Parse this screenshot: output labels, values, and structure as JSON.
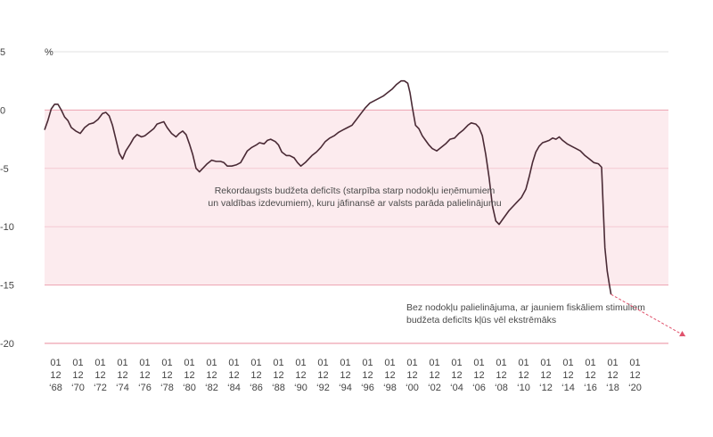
{
  "chart_data": {
    "type": "area",
    "ylabel": "%",
    "ylim": [
      -20,
      5
    ],
    "y_ticks": [
      "5",
      "0",
      "-5",
      "-10",
      "-15",
      "-20"
    ],
    "y_tick_values": [
      5,
      0,
      -5,
      -10,
      -15,
      -20
    ],
    "xlim": [
      1967.0,
      2023.0
    ],
    "x_ticks": [
      {
        "year": 1968,
        "l1": "01",
        "l2": "12",
        "l3": "‘68"
      },
      {
        "year": 1970,
        "l1": "01",
        "l2": "12",
        "l3": "‘70"
      },
      {
        "year": 1972,
        "l1": "01",
        "l2": "12",
        "l3": "‘72"
      },
      {
        "year": 1974,
        "l1": "01",
        "l2": "12",
        "l3": "‘74"
      },
      {
        "year": 1976,
        "l1": "01",
        "l2": "12",
        "l3": "‘76"
      },
      {
        "year": 1978,
        "l1": "01",
        "l2": "12",
        "l3": "‘78"
      },
      {
        "year": 1980,
        "l1": "01",
        "l2": "12",
        "l3": "‘80"
      },
      {
        "year": 1982,
        "l1": "01",
        "l2": "12",
        "l3": "‘82"
      },
      {
        "year": 1984,
        "l1": "01",
        "l2": "12",
        "l3": "‘84"
      },
      {
        "year": 1986,
        "l1": "01",
        "l2": "12",
        "l3": "‘86"
      },
      {
        "year": 1988,
        "l1": "01",
        "l2": "12",
        "l3": "‘88"
      },
      {
        "year": 1990,
        "l1": "01",
        "l2": "12",
        "l3": "‘90"
      },
      {
        "year": 1992,
        "l1": "01",
        "l2": "12",
        "l3": "‘92"
      },
      {
        "year": 1994,
        "l1": "01",
        "l2": "12",
        "l3": "‘94"
      },
      {
        "year": 1996,
        "l1": "01",
        "l2": "12",
        "l3": "‘96"
      },
      {
        "year": 1998,
        "l1": "01",
        "l2": "12",
        "l3": "‘98"
      },
      {
        "year": 2000,
        "l1": "01",
        "l2": "12",
        "l3": "‘00"
      },
      {
        "year": 2002,
        "l1": "01",
        "l2": "12",
        "l3": "‘02"
      },
      {
        "year": 2004,
        "l1": "01",
        "l2": "12",
        "l3": "‘04"
      },
      {
        "year": 2006,
        "l1": "01",
        "l2": "12",
        "l3": "‘06"
      },
      {
        "year": 2008,
        "l1": "01",
        "l2": "12",
        "l3": "‘08"
      },
      {
        "year": 2010,
        "l1": "01",
        "l2": "12",
        "l3": "‘10"
      },
      {
        "year": 2012,
        "l1": "01",
        "l2": "12",
        "l3": "‘12"
      },
      {
        "year": 2014,
        "l1": "01",
        "l2": "12",
        "l3": "‘14"
      },
      {
        "year": 2016,
        "l1": "01",
        "l2": "12",
        "l3": "‘16"
      },
      {
        "year": 2018,
        "l1": "01",
        "l2": "12",
        "l3": "‘18"
      },
      {
        "year": 2020,
        "l1": "01",
        "l2": "12",
        "l3": "‘20"
      }
    ],
    "shaded_range": [
      -15,
      0
    ],
    "series": [
      {
        "values": [
          [
            1967.0,
            -1.7
          ],
          [
            1967.3,
            -0.9
          ],
          [
            1967.6,
            0.1
          ],
          [
            1967.9,
            0.5
          ],
          [
            1968.2,
            0.5
          ],
          [
            1968.5,
            0.0
          ],
          [
            1968.8,
            -0.6
          ],
          [
            1969.1,
            -0.9
          ],
          [
            1969.4,
            -1.5
          ],
          [
            1969.8,
            -1.8
          ],
          [
            1970.2,
            -2.0
          ],
          [
            1970.6,
            -1.5
          ],
          [
            1971.0,
            -1.2
          ],
          [
            1971.4,
            -1.1
          ],
          [
            1971.8,
            -0.8
          ],
          [
            1972.2,
            -0.3
          ],
          [
            1972.5,
            -0.2
          ],
          [
            1972.8,
            -0.5
          ],
          [
            1973.1,
            -1.3
          ],
          [
            1973.4,
            -2.5
          ],
          [
            1973.7,
            -3.7
          ],
          [
            1974.0,
            -4.2
          ],
          [
            1974.3,
            -3.5
          ],
          [
            1974.7,
            -2.9
          ],
          [
            1975.0,
            -2.4
          ],
          [
            1975.3,
            -2.1
          ],
          [
            1975.7,
            -2.3
          ],
          [
            1976.0,
            -2.2
          ],
          [
            1976.4,
            -1.9
          ],
          [
            1976.8,
            -1.6
          ],
          [
            1977.1,
            -1.2
          ],
          [
            1977.4,
            -1.1
          ],
          [
            1977.7,
            -1.0
          ],
          [
            1978.0,
            -1.5
          ],
          [
            1978.4,
            -2.0
          ],
          [
            1978.8,
            -2.3
          ],
          [
            1979.1,
            -2.0
          ],
          [
            1979.4,
            -1.8
          ],
          [
            1979.7,
            -2.1
          ],
          [
            1980.0,
            -2.9
          ],
          [
            1980.3,
            -3.8
          ],
          [
            1980.6,
            -5.0
          ],
          [
            1980.9,
            -5.3
          ],
          [
            1981.2,
            -5.0
          ],
          [
            1981.6,
            -4.6
          ],
          [
            1982.0,
            -4.3
          ],
          [
            1982.4,
            -4.4
          ],
          [
            1982.8,
            -4.4
          ],
          [
            1983.1,
            -4.5
          ],
          [
            1983.4,
            -4.8
          ],
          [
            1983.8,
            -4.8
          ],
          [
            1984.2,
            -4.7
          ],
          [
            1984.6,
            -4.5
          ],
          [
            1984.9,
            -4.0
          ],
          [
            1985.2,
            -3.5
          ],
          [
            1985.6,
            -3.2
          ],
          [
            1986.0,
            -3.0
          ],
          [
            1986.3,
            -2.8
          ],
          [
            1986.7,
            -2.9
          ],
          [
            1987.0,
            -2.6
          ],
          [
            1987.3,
            -2.5
          ],
          [
            1987.7,
            -2.7
          ],
          [
            1988.0,
            -3.0
          ],
          [
            1988.3,
            -3.6
          ],
          [
            1988.7,
            -3.9
          ],
          [
            1989.0,
            -3.9
          ],
          [
            1989.4,
            -4.1
          ],
          [
            1989.7,
            -4.5
          ],
          [
            1990.0,
            -4.8
          ],
          [
            1990.4,
            -4.5
          ],
          [
            1990.7,
            -4.2
          ],
          [
            1991.0,
            -3.9
          ],
          [
            1991.4,
            -3.6
          ],
          [
            1991.8,
            -3.2
          ],
          [
            1992.2,
            -2.7
          ],
          [
            1992.6,
            -2.4
          ],
          [
            1993.0,
            -2.2
          ],
          [
            1993.4,
            -1.9
          ],
          [
            1993.8,
            -1.7
          ],
          [
            1994.2,
            -1.5
          ],
          [
            1994.6,
            -1.3
          ],
          [
            1995.0,
            -0.8
          ],
          [
            1995.4,
            -0.3
          ],
          [
            1995.8,
            0.2
          ],
          [
            1996.2,
            0.6
          ],
          [
            1996.6,
            0.8
          ],
          [
            1997.0,
            1.0
          ],
          [
            1997.4,
            1.2
          ],
          [
            1997.8,
            1.5
          ],
          [
            1998.2,
            1.8
          ],
          [
            1998.6,
            2.2
          ],
          [
            1999.0,
            2.5
          ],
          [
            1999.3,
            2.5
          ],
          [
            1999.6,
            2.3
          ],
          [
            1999.8,
            1.5
          ],
          [
            2000.0,
            0.3
          ],
          [
            2000.3,
            -1.3
          ],
          [
            2000.6,
            -1.6
          ],
          [
            2000.9,
            -2.2
          ],
          [
            2001.2,
            -2.6
          ],
          [
            2001.5,
            -3.0
          ],
          [
            2001.8,
            -3.3
          ],
          [
            2002.2,
            -3.5
          ],
          [
            2002.6,
            -3.2
          ],
          [
            2003.0,
            -2.9
          ],
          [
            2003.4,
            -2.5
          ],
          [
            2003.8,
            -2.4
          ],
          [
            2004.2,
            -2.0
          ],
          [
            2004.6,
            -1.7
          ],
          [
            2005.0,
            -1.3
          ],
          [
            2005.3,
            -1.1
          ],
          [
            2005.7,
            -1.2
          ],
          [
            2006.0,
            -1.5
          ],
          [
            2006.3,
            -2.2
          ],
          [
            2006.6,
            -3.8
          ],
          [
            2006.9,
            -5.8
          ],
          [
            2007.2,
            -8.2
          ],
          [
            2007.5,
            -9.5
          ],
          [
            2007.8,
            -9.8
          ],
          [
            2008.1,
            -9.4
          ],
          [
            2008.4,
            -9.0
          ],
          [
            2008.7,
            -8.6
          ],
          [
            2009.0,
            -8.3
          ],
          [
            2009.4,
            -7.9
          ],
          [
            2009.8,
            -7.5
          ],
          [
            2010.2,
            -6.8
          ],
          [
            2010.5,
            -5.7
          ],
          [
            2010.8,
            -4.5
          ],
          [
            2011.1,
            -3.6
          ],
          [
            2011.4,
            -3.1
          ],
          [
            2011.7,
            -2.8
          ],
          [
            2012.0,
            -2.7
          ],
          [
            2012.3,
            -2.6
          ],
          [
            2012.6,
            -2.4
          ],
          [
            2012.9,
            -2.5
          ],
          [
            2013.2,
            -2.3
          ],
          [
            2013.5,
            -2.6
          ],
          [
            2013.9,
            -2.9
          ],
          [
            2014.3,
            -3.1
          ],
          [
            2014.7,
            -3.3
          ],
          [
            2015.1,
            -3.5
          ],
          [
            2015.5,
            -3.9
          ],
          [
            2015.9,
            -4.2
          ],
          [
            2016.3,
            -4.5
          ],
          [
            2016.7,
            -4.6
          ],
          [
            2017.0,
            -4.9
          ],
          [
            2017.15,
            -8.5
          ],
          [
            2017.3,
            -11.8
          ],
          [
            2017.5,
            -13.8
          ],
          [
            2017.7,
            -15.0
          ],
          [
            2017.85,
            -15.8
          ]
        ]
      }
    ],
    "annotations": [
      {
        "lines": [
          "Rekordaugsts budžeta deficīts (starpība starp nodokļu ieņēmumiem",
          "un valdības izdevumiem), kuru jāfinansē ar valsts parāda palielinājumu"
        ]
      },
      {
        "lines": [
          "Bez nodokļu palielinājuma, ar jauniem fiskāliem stimuliem",
          "budžeta deficīts kļūs vēl ekstrēmāks"
        ]
      }
    ],
    "colors": {
      "line": "#4a2a35",
      "band_fill": "#fcebee",
      "band_line": "#eda2b1",
      "grid": "#e1e1e1",
      "arrow": "#e0526c",
      "axis_base": "#eda2b1"
    }
  }
}
